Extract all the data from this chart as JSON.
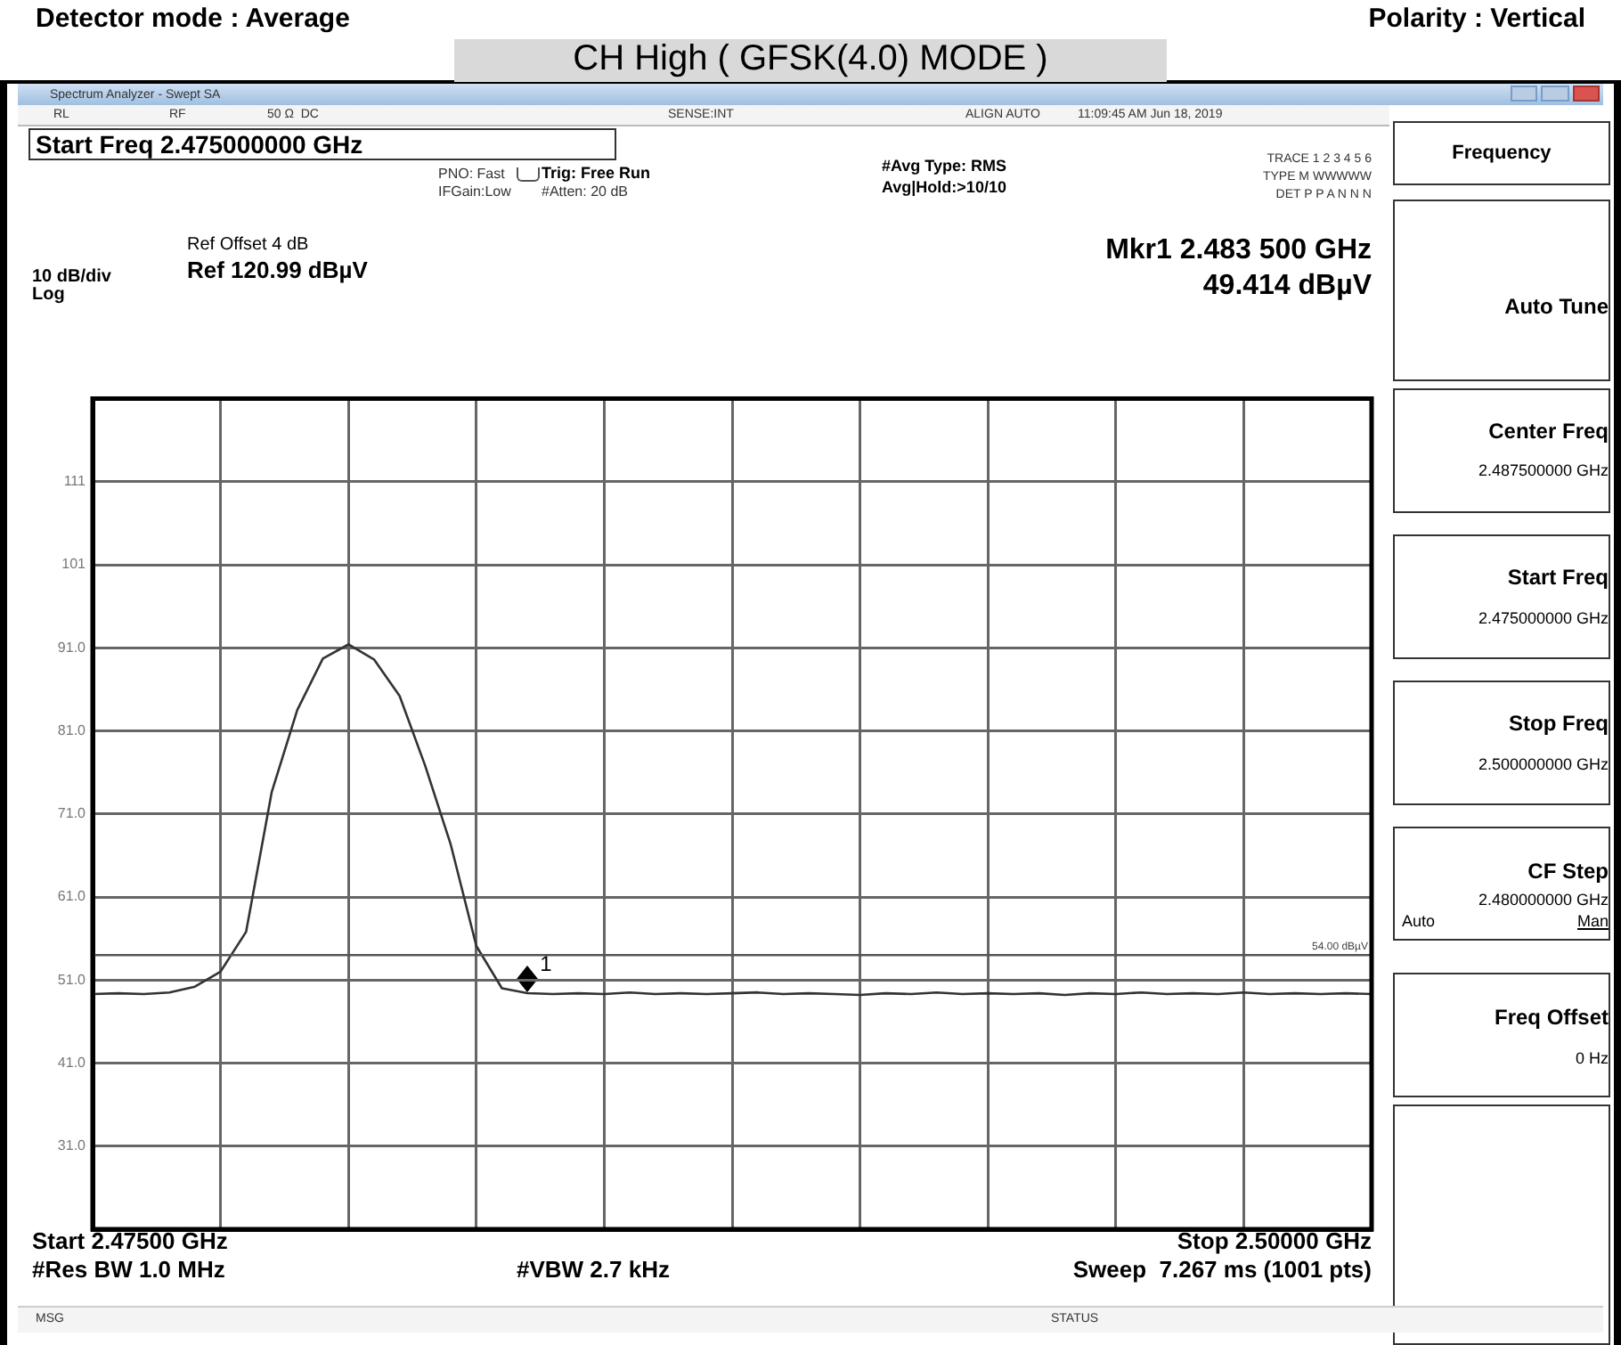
{
  "chart_data": {
    "type": "line",
    "title": "CH High ( GFSK(4.0) MODE )",
    "categories": [
      null,
      null,
      null,
      null,
      null,
      null,
      null,
      null,
      null,
      null,
      null,
      null,
      null,
      null,
      null,
      null,
      null,
      null,
      null,
      null,
      null,
      null,
      null,
      null,
      null,
      null,
      null,
      null,
      null,
      null,
      null,
      null,
      null,
      null,
      null,
      null,
      null,
      null,
      null,
      null,
      null,
      null,
      null,
      null,
      null,
      null,
      null,
      null,
      null,
      null,
      null
    ],
    "ylim": [
      20.99,
      120.99
    ],
    "yticks": [
      {
        "value": 110.99,
        "label": "111"
      },
      {
        "value": 100.99,
        "label": "101"
      },
      {
        "value": 90.99,
        "label": "91.0"
      },
      {
        "value": 80.99,
        "label": "81.0"
      },
      {
        "value": 70.99,
        "label": "71.0"
      },
      {
        "value": 60.99,
        "label": "61.0"
      },
      {
        "value": 50.99,
        "label": "51.0"
      },
      {
        "value": 40.99,
        "label": "41.0"
      },
      {
        "value": 30.99,
        "label": "31.0"
      }
    ],
    "tick_labels": "y",
    "grid": true,
    "legend": false,
    "series": [
      {
        "color": "#333333",
        "values": [
          49.3,
          49.4,
          49.3,
          49.5,
          50.2,
          52.0,
          56.8,
          73.6,
          83.5,
          89.7,
          91.4,
          89.6,
          85.2,
          76.8,
          67.3,
          55.1,
          50.0,
          49.414,
          49.3,
          49.4,
          49.3,
          49.5,
          49.3,
          49.4,
          49.3,
          49.4,
          49.5,
          49.3,
          49.4,
          49.3,
          49.2,
          49.4,
          49.3,
          49.5,
          49.3,
          49.4,
          49.3,
          49.4,
          49.2,
          49.4,
          49.3,
          49.5,
          49.3,
          49.4,
          49.3,
          49.5,
          49.3,
          49.4,
          49.3,
          49.4,
          49.3
        ]
      }
    ],
    "ref_lines": [
      {
        "axis": "y",
        "value": 54,
        "label": "54.00 dBµV",
        "color": "#555555"
      }
    ],
    "annotations": [
      "Detector mode : Average",
      "Polarity : Vertical",
      "Spectrum Analyzer - Swept SA",
      "RL",
      "RF",
      "50 Ω  DC",
      "SENSE:INT",
      "ALIGN AUTO",
      "11:09:45 AM Jun 18, 2019",
      "Start Freq 2.475000000 GHz",
      "PNO: Fast",
      "IFGain:Low",
      "Trig: Free Run",
      "#Atten: 20 dB",
      "#Avg Type: RMS",
      "Avg|Hold:>10/10",
      "TRACE 1 2 3 4 5 6",
      "TYPE M WWWWW",
      "DET P P A N N N",
      "Ref Offset 4 dB",
      "Ref 120.99 dBµV",
      "10 dB/div",
      "Log",
      "Mkr1 2.483 500 GHz",
      "49.414 dBµV",
      "Start 2.47500 GHz",
      "#Res BW 1.0 MHz",
      "#VBW 2.7 kHz",
      "Stop 2.50000 GHz",
      "Sweep  7.267 ms (1001 pts)",
      "MSG",
      "STATUS",
      "Frequency",
      "Auto Tune",
      "Center Freq",
      "2.487500000 GHz",
      "Start Freq",
      "2.475000000 GHz",
      "Stop Freq",
      "2.500000000 GHz",
      "CF Step",
      "2.480000000 GHz",
      "Auto",
      "Man",
      "Freq Offset",
      "0 Hz",
      {
        "text": "1",
        "y": 49.414
      }
    ]
  }
}
